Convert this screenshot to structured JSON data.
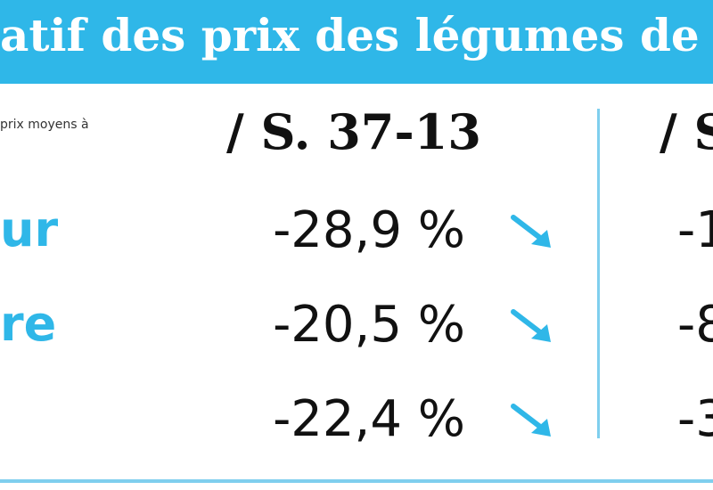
{
  "header": {
    "title": "atif des prix des légumes de la sem"
  },
  "note": "prix moyens à",
  "columns": {
    "first": "/ S. 37-13",
    "second": "/ S"
  },
  "rows": [
    {
      "label": "ur",
      "value": "-28,9 %",
      "trend": "down",
      "value_partial": "-1"
    },
    {
      "label": "re",
      "value": "-20,5 %",
      "trend": "down",
      "value_partial": "-8"
    },
    {
      "label": "",
      "value": "-22,4 %",
      "trend": "down",
      "value_partial": "-3"
    }
  ],
  "colors": {
    "accent": "#2fb7e8",
    "text": "#111111"
  },
  "icons": {
    "trend_down": "arrow-down-right-icon"
  }
}
